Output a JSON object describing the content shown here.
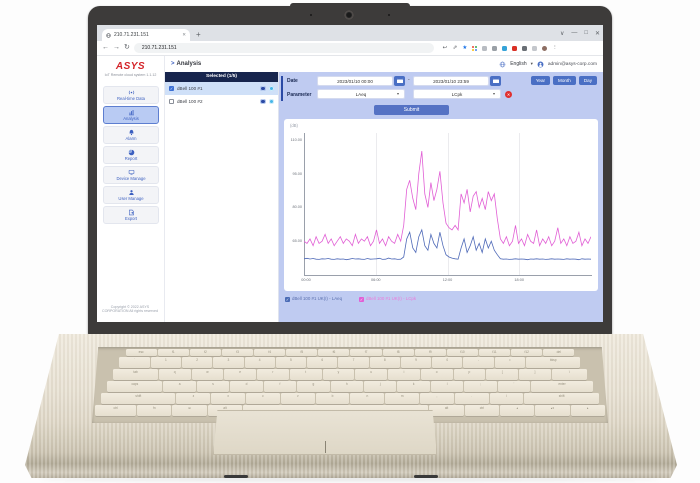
{
  "browser": {
    "tab_title": "210.71.231.151",
    "url": "210.71.231.151",
    "toolbar_icons": [
      {
        "name": "reply-icon",
        "type": "glyph",
        "glyph": "↩",
        "color": "#5f6368"
      },
      {
        "name": "share-icon",
        "type": "glyph",
        "glyph": "⇗",
        "color": "#5f6368"
      },
      {
        "name": "bookmark-star-icon",
        "type": "glyph",
        "glyph": "★",
        "color": "#1a73e8"
      },
      {
        "name": "google-apps-icon",
        "type": "google",
        "colors": [
          "#ea4335",
          "#34a853",
          "#fbbc05",
          "#4285f4"
        ]
      },
      {
        "name": "extension-gray-1-icon",
        "type": "dot",
        "color": "#b8bcc2"
      },
      {
        "name": "extension-gray-2-icon",
        "type": "dot",
        "color": "#9aa0a6"
      },
      {
        "name": "extension-blue-icon",
        "type": "dot",
        "color": "#35a3d8"
      },
      {
        "name": "extension-red-icon",
        "type": "dot",
        "color": "#d93025"
      },
      {
        "name": "extensions-puzzle-icon",
        "type": "dot",
        "color": "#6a6f75"
      },
      {
        "name": "tab-groups-icon",
        "type": "dot",
        "color": "#c4c7cc"
      },
      {
        "name": "profile-avatar",
        "type": "dot-round",
        "color": "#8d6e63"
      },
      {
        "name": "menu-kebab-icon",
        "type": "glyph",
        "glyph": "⋮",
        "color": "#5f6368"
      }
    ]
  },
  "glyphs": {
    "new_tab": "+",
    "tab_close": "✕",
    "tab_chevron": "∨",
    "minimize": "—",
    "maximize": "□",
    "close": "✕",
    "back": "←",
    "forward": "→",
    "reload": "↻",
    "dropdown": "▾",
    "breadcrumb_arrow": ">",
    "check": "✓",
    "remove": "✕",
    "date_separator": "-"
  },
  "header": {
    "breadcrumb": "Analysis",
    "language": "English",
    "account": "admin@asys-corp.com"
  },
  "sidebar": {
    "logo": "ASYS",
    "subtitle": "IoT Remote cloud system 1.1.12",
    "items": [
      {
        "id": "real-time-data",
        "label": "Real-time Data",
        "icon": "realtime",
        "active": false
      },
      {
        "id": "analysis",
        "label": "Analysis",
        "icon": "analysis",
        "active": true
      },
      {
        "id": "alarm",
        "label": "Alarm",
        "icon": "alarm",
        "active": false
      },
      {
        "id": "report",
        "label": "Report",
        "icon": "report",
        "active": false
      },
      {
        "id": "device-manage",
        "label": "Device Manage",
        "icon": "device",
        "active": false
      },
      {
        "id": "user-manage",
        "label": "User Manage",
        "icon": "user",
        "active": false
      },
      {
        "id": "export",
        "label": "Export",
        "icon": "export",
        "active": false
      }
    ],
    "copyright": "Copyright © 2022 ASYS CORPORATION All rights reserved"
  },
  "device_panel": {
    "header": "Selected (1/5)",
    "items": [
      {
        "label": "dBell 100 #1",
        "checked": true
      },
      {
        "label": "dBell 100 #2",
        "checked": false
      }
    ]
  },
  "filters": {
    "date_label": "Date",
    "date_from": "2023/01/10 00:00",
    "date_to": "2023/01/10 23:59",
    "range_buttons": [
      "Year",
      "Month",
      "Day"
    ],
    "parameter_label": "Parameter",
    "parameter_values": [
      "LAeq",
      "LCpk"
    ],
    "submit_label": "Submit"
  },
  "chart_data": {
    "type": "line",
    "unit_label": "(dB)",
    "ylim": [
      50,
      113
    ],
    "y_tick_labels": [
      "110.00",
      "95.00",
      "80.00",
      "65.00"
    ],
    "x_tick_labels": [
      "00:00",
      "06:00",
      "12:00",
      "18:00"
    ],
    "x_hours_start": 0,
    "x_hours_step": 0.25,
    "grid": "vertical at 06:00 12:00 18:00",
    "legend_position": "bottom",
    "series": [
      {
        "name": "dBell 100 #1 UK(I) - LAeq",
        "color": "#4f6ab8",
        "values": [
          57.2,
          57.4,
          57.1,
          57.3,
          57.0,
          56.9,
          57.2,
          57.1,
          57.3,
          57.0,
          56.9,
          57.2,
          57.0,
          57.1,
          56.8,
          57.0,
          57.3,
          57.1,
          57.2,
          57.0,
          56.9,
          57.3,
          57.0,
          57.1,
          57.2,
          57.4,
          56.9,
          57.0,
          57.5,
          57.1,
          57.2,
          56.9,
          57.0,
          58.0,
          66,
          69,
          62,
          60,
          67,
          70,
          63,
          61,
          68,
          64,
          62,
          69,
          63,
          59,
          58,
          57.5,
          57.2,
          57.0,
          62,
          66,
          60,
          63,
          67,
          61,
          64,
          60,
          66,
          62,
          65,
          61,
          59,
          57.2,
          57.0,
          57.1,
          56.9,
          57.0,
          57.2,
          57.0,
          57.1,
          57.0,
          56.8,
          57.1,
          57.0,
          57.2,
          57.0,
          57.1,
          56.9,
          57.0,
          57.2,
          57.0,
          57.1,
          57.0,
          56.9,
          57.2,
          57.0,
          57.1,
          57.0,
          56.8,
          57.2,
          57.0,
          57.1,
          57.0
        ]
      },
      {
        "name": "dBell 100 #1 UK(I) - LCpk",
        "color": "#e15fd5",
        "values": [
          65,
          64,
          66,
          63,
          67,
          64,
          65,
          68,
          64,
          66,
          63,
          65,
          67,
          64,
          66,
          65,
          63,
          68,
          64,
          66,
          65,
          67,
          63,
          65,
          70,
          64,
          66,
          63,
          67,
          65,
          64,
          68,
          65,
          72,
          88,
          92,
          84,
          79,
          95,
          105,
          86,
          80,
          91,
          83,
          88,
          96,
          82,
          73,
          71,
          70,
          72,
          70,
          86,
          82,
          88,
          78,
          85,
          87,
          80,
          84,
          79,
          87,
          83,
          86,
          75,
          66,
          64,
          67,
          63,
          65,
          72,
          64,
          66,
          63,
          68,
          65,
          64,
          70,
          63,
          66,
          64,
          67,
          63,
          65,
          71,
          64,
          66,
          63,
          67,
          64,
          65,
          69,
          63,
          66,
          64,
          67
        ]
      }
    ]
  },
  "laptop": {
    "keyboard_rows": [
      [
        "esc",
        "f1",
        "f2",
        "f3",
        "f4",
        "f5",
        "f6",
        "f7",
        "f8",
        "f9",
        "f10",
        "f11",
        "f12",
        {
          "l": "del",
          "w": 1
        }
      ],
      [
        "`",
        "1",
        "2",
        "3",
        "4",
        "5",
        "6",
        "7",
        "8",
        "9",
        "0",
        "-",
        "=",
        {
          "l": "bksp",
          "w": 1.8
        }
      ],
      [
        {
          "l": "tab",
          "w": 1.4
        },
        "q",
        "w",
        "e",
        "r",
        "t",
        "y",
        "u",
        "i",
        "o",
        "p",
        "[",
        "]",
        {
          "l": "\\",
          "w": 1.1
        }
      ],
      [
        {
          "l": "caps",
          "w": 1.7
        },
        "a",
        "s",
        "d",
        "f",
        "g",
        "h",
        "j",
        "k",
        "l",
        ";",
        "'",
        {
          "l": "enter",
          "w": 1.9
        }
      ],
      [
        {
          "l": "shift",
          "w": 2.2
        },
        "z",
        "x",
        "c",
        "v",
        "b",
        "n",
        "m",
        ",",
        ".",
        "/",
        {
          "l": "shift",
          "w": 2.2
        }
      ],
      [
        {
          "l": "ctrl",
          "w": 1.2
        },
        "fn",
        "⊞",
        "alt",
        {
          "l": "",
          "w": 5.4
        },
        "alt",
        "ctrl",
        "◂",
        {
          "l": "▴▾",
          "w": 1
        },
        "▸"
      ]
    ]
  }
}
